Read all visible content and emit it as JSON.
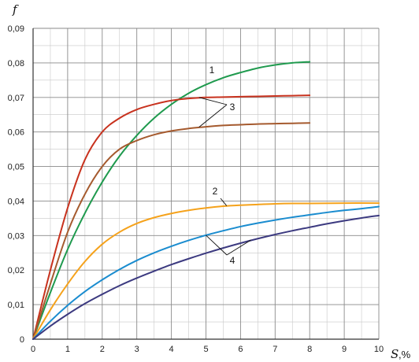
{
  "chart_data": {
    "type": "line",
    "title": "",
    "xlabel": "S",
    "xunit": ",%",
    "ylabel": "f",
    "xlim": [
      0,
      10
    ],
    "ylim": [
      0,
      0.09
    ],
    "grid": true,
    "legend": "none",
    "x_ticks": [
      "0",
      "1",
      "2",
      "3",
      "4",
      "5",
      "6",
      "7",
      "8",
      "9",
      "10"
    ],
    "y_ticks": [
      "0",
      "0,01",
      "0,02",
      "0,03",
      "0,04",
      "0,05",
      "0,06",
      "0,07",
      "0,08",
      "0,09"
    ],
    "series": [
      {
        "color": "#1f9a4e",
        "x": [
          0,
          0.5,
          1,
          1.5,
          2,
          2.5,
          3,
          3.5,
          4,
          4.5,
          5,
          5.5,
          6,
          6.5,
          7,
          7.5,
          8
        ],
        "y": [
          0,
          0.0135,
          0.026,
          0.0365,
          0.0455,
          0.053,
          0.059,
          0.064,
          0.068,
          0.0712,
          0.0737,
          0.0757,
          0.0772,
          0.0785,
          0.0794,
          0.08,
          0.0803
        ]
      },
      {
        "color": "#c8321e",
        "x": [
          0,
          0.5,
          1,
          1.5,
          2,
          2.5,
          3,
          3.5,
          4,
          4.5,
          5,
          5.5,
          6,
          6.5,
          7,
          7.5,
          8
        ],
        "y": [
          0,
          0.02,
          0.038,
          0.052,
          0.06,
          0.064,
          0.0665,
          0.068,
          0.0691,
          0.0697,
          0.07,
          0.0701,
          0.0702,
          0.0703,
          0.0704,
          0.0705,
          0.0706
        ]
      },
      {
        "color": "#a55a2e",
        "x": [
          0,
          0.5,
          1,
          1.5,
          2,
          2.5,
          3,
          3.5,
          4,
          4.5,
          5,
          5.5,
          6,
          6.5,
          7,
          7.5,
          8
        ],
        "y": [
          0,
          0.016,
          0.031,
          0.042,
          0.05,
          0.055,
          0.0575,
          0.0592,
          0.0603,
          0.061,
          0.0615,
          0.0619,
          0.0621,
          0.0623,
          0.0624,
          0.0625,
          0.0626
        ]
      },
      {
        "color": "#f5a21b",
        "x": [
          0,
          0.5,
          1,
          1.5,
          2,
          2.5,
          3,
          3.5,
          4,
          4.5,
          5,
          5.5,
          6,
          6.5,
          7,
          7.5,
          8,
          9,
          10
        ],
        "y": [
          0,
          0.0085,
          0.016,
          0.0225,
          0.0275,
          0.031,
          0.0335,
          0.0352,
          0.0364,
          0.0373,
          0.038,
          0.0385,
          0.0388,
          0.039,
          0.0392,
          0.0393,
          0.0393,
          0.0394,
          0.0394
        ]
      },
      {
        "color": "#1a8ccf",
        "x": [
          0,
          0.5,
          1,
          1.5,
          2,
          2.5,
          3,
          3.5,
          4,
          4.5,
          5,
          5.5,
          6,
          6.5,
          7,
          7.5,
          8,
          8.5,
          9,
          9.5,
          10
        ],
        "y": [
          0,
          0.0052,
          0.0098,
          0.0138,
          0.0172,
          0.0202,
          0.0228,
          0.025,
          0.0269,
          0.0286,
          0.0301,
          0.0314,
          0.0326,
          0.0336,
          0.0345,
          0.0353,
          0.036,
          0.0367,
          0.0373,
          0.0378,
          0.0384
        ]
      },
      {
        "color": "#3c3a80",
        "x": [
          0,
          0.5,
          1,
          1.5,
          2,
          2.5,
          3,
          3.5,
          4,
          4.5,
          5,
          5.5,
          6,
          6.5,
          7,
          7.5,
          8,
          8.5,
          9,
          9.5,
          10
        ],
        "y": [
          0,
          0.0038,
          0.0072,
          0.0103,
          0.013,
          0.0155,
          0.0177,
          0.0197,
          0.0216,
          0.0233,
          0.0249,
          0.0264,
          0.0278,
          0.0291,
          0.0303,
          0.0314,
          0.0324,
          0.0334,
          0.0343,
          0.0351,
          0.0358
        ]
      }
    ],
    "annotations": [
      {
        "text": "1",
        "targets": [
          {
            "x": 4.8,
            "y": 0.0722
          }
        ]
      },
      {
        "text": "3",
        "targets": [
          {
            "x": 4.8,
            "y": 0.07
          },
          {
            "x": 4.8,
            "y": 0.0614
          }
        ]
      },
      {
        "text": "2",
        "targets": [
          {
            "x": 5.6,
            "y": 0.0386
          }
        ]
      },
      {
        "text": "4",
        "targets": [
          {
            "x": 5.0,
            "y": 0.0301
          },
          {
            "x": 6.3,
            "y": 0.0287
          }
        ]
      }
    ]
  }
}
